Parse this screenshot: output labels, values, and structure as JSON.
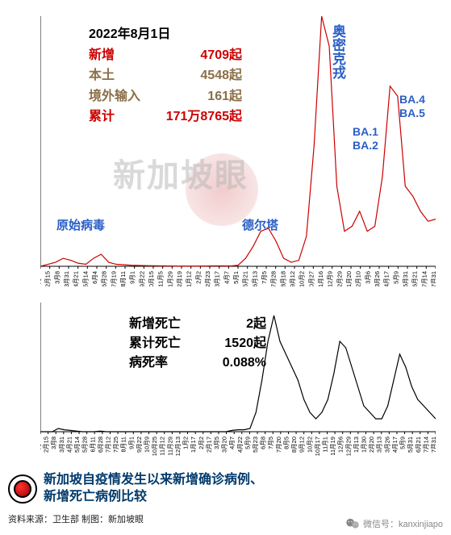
{
  "title_date": "2022年8月1日",
  "stats": {
    "new_label": "新增",
    "new_value": "4709起",
    "new_color": "#cc0000",
    "local_label": "本土",
    "local_value": "4548起",
    "local_color": "#8b6f47",
    "import_label": "境外输入",
    "import_value": "161起",
    "import_color": "#8b6f47",
    "total_label": "累计",
    "total_value": "171万8765起",
    "total_color": "#cc0000"
  },
  "death_stats": {
    "new_death_label": "新增死亡",
    "new_death_value": "2起",
    "total_death_label": "累计死亡",
    "total_death_value": "1520起",
    "cfr_label": "病死率",
    "cfr_value": "0.088%"
  },
  "annotations": {
    "original": {
      "text": "原始病毒",
      "color": "#2b5fc4"
    },
    "delta": {
      "text": "德尔塔",
      "color": "#2b5fc4"
    },
    "omicron": {
      "text": "奥密克戎",
      "color": "#2b5fc4"
    },
    "ba12": {
      "text": "BA.1\nBA.2",
      "color": "#2b5fc4"
    },
    "ba45": {
      "text": "BA.4\nBA.5",
      "color": "#2b5fc4"
    }
  },
  "watermark": "新加坡眼",
  "footer": {
    "title_line1": "新加坡自疫情发生以来新增确诊病例、",
    "title_line2": "新增死亡病例比较",
    "source": "资料来源：卫生部    制图：新加坡眼",
    "wechat": "微信号：kanxinjiapo"
  },
  "top_chart": {
    "type": "line",
    "line_color": "#cc0000",
    "background": "#ffffff",
    "ylim": [
      0,
      25000
    ],
    "yticks": [
      0,
      5000,
      10000,
      15000,
      20000,
      25000
    ],
    "tick_fontsize": 9,
    "xtick_labels": [
      "1月24",
      "2月15",
      "3月8",
      "3月31",
      "4月21",
      "5月14",
      "6月4",
      "6月28",
      "7月19",
      "8月11",
      "9月1",
      "9月22",
      "10月15",
      "11月5",
      "11月29",
      "12月19",
      "1月12",
      "2月2",
      "2月23",
      "3月17",
      "4月7",
      "5月1",
      "5月21",
      "6月13",
      "7月5",
      "7月28",
      "8月18",
      "9月12",
      "10月2",
      "10月27",
      "11月16",
      "12月9",
      "12月29",
      "1月20",
      "2月10",
      "3月6",
      "3月26",
      "4月17",
      "5月9",
      "5月31",
      "6月21",
      "7月14",
      "7月31"
    ],
    "series": [
      0,
      200,
      400,
      800,
      600,
      300,
      200,
      800,
      1200,
      400,
      200,
      150,
      100,
      80,
      60,
      50,
      40,
      30,
      20,
      20,
      20,
      20,
      30,
      40,
      40,
      30,
      100,
      800,
      2000,
      3500,
      3800,
      2500,
      800,
      400,
      600,
      3000,
      12000,
      25000,
      22000,
      8000,
      3500,
      4000,
      5500,
      3500,
      4000,
      9000,
      18000,
      17000,
      8000,
      7000,
      5500,
      4500,
      4709
    ]
  },
  "bottom_chart": {
    "type": "line",
    "line_color": "#000000",
    "background": "#ffffff",
    "ylim": [
      0,
      20
    ],
    "yticks": [
      0,
      5,
      10,
      15,
      20
    ],
    "tick_fontsize": 9,
    "xtick_labels": [
      "1月23",
      "2月15",
      "3月8",
      "3月31",
      "4月21",
      "5月14",
      "5月28",
      "6月11",
      "6月28",
      "7月12",
      "7月25",
      "8月11",
      "9月1",
      "9月22",
      "10月9",
      "10月25",
      "11月12",
      "11月29",
      "12月13",
      "1月2",
      "1月17",
      "2月2",
      "2月17",
      "3月5",
      "3月20",
      "4月7",
      "4月22",
      "5月9",
      "5月23",
      "6月8",
      "7月5",
      "7月20",
      "8月5",
      "8月20",
      "9月12",
      "10月2",
      "10月17",
      "11月1",
      "11月19",
      "12月6",
      "12月29",
      "1月13",
      "1月30",
      "2月20",
      "3月13",
      "3月26",
      "4月17",
      "5月9",
      "5月31",
      "6月21",
      "7月14",
      "7月31"
    ],
    "series": [
      0,
      0,
      0,
      0.5,
      0.3,
      0.2,
      0.1,
      0,
      0,
      0,
      0.1,
      0,
      0,
      0,
      0,
      0,
      0,
      0,
      0,
      0,
      0,
      0,
      0,
      0,
      0,
      0,
      0,
      0,
      0,
      0,
      0,
      0,
      0.2,
      0.3,
      0.3,
      0.5,
      3,
      8,
      14,
      18,
      14,
      12,
      10,
      8,
      5,
      3,
      2,
      3,
      5,
      9,
      14,
      13,
      10,
      7,
      4,
      3,
      2,
      2,
      4,
      8,
      12,
      10,
      7,
      5,
      4,
      3,
      2
    ]
  },
  "colors": {
    "text_black": "#000000",
    "text_red": "#cc0000",
    "text_brown": "#8b6f47",
    "text_blue": "#2b5fc4",
    "footer_blue": "#013a6b"
  }
}
